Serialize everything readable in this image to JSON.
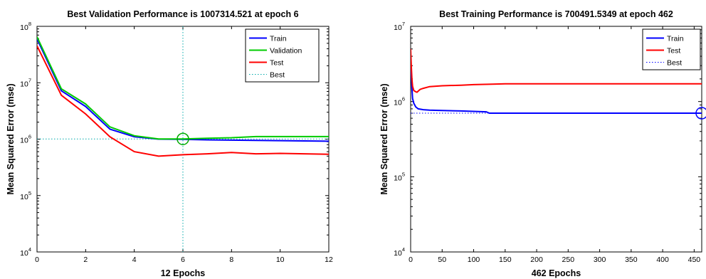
{
  "chart_data": [
    {
      "type": "line",
      "title": "Best Validation Performance is 1007314.521 at epoch 6",
      "xlabel": "12 Epochs",
      "ylabel": "Mean Squared Error  (mse)",
      "xscale": "linear",
      "yscale": "log",
      "xlim": [
        0,
        12
      ],
      "ylim": [
        10000,
        100000000
      ],
      "xticks": [
        0,
        2,
        4,
        6,
        8,
        10,
        12
      ],
      "yticks": [
        10000,
        100000,
        1000000,
        10000000,
        100000000
      ],
      "ytick_base": "10",
      "ytick_exponents": [
        "4",
        "5",
        "6",
        "7",
        "8"
      ],
      "grid": false,
      "legend_position": "top-right",
      "legend": [
        "Train",
        "Validation",
        "Test",
        "Best"
      ],
      "series": [
        {
          "name": "Train",
          "color": "#0000ff",
          "x": [
            0,
            1,
            2,
            3,
            4,
            5,
            6,
            7,
            8,
            9,
            10,
            11,
            12
          ],
          "y": [
            60000000,
            7200000,
            3800000,
            1500000,
            1100000,
            1000000,
            990000,
            970000,
            960000,
            950000,
            940000,
            930000,
            920000
          ]
        },
        {
          "name": "Validation",
          "color": "#00cc00",
          "x": [
            0,
            1,
            2,
            3,
            4,
            5,
            6,
            7,
            8,
            9,
            10,
            11,
            12
          ],
          "y": [
            65000000,
            7800000,
            4200000,
            1650000,
            1150000,
            1010000,
            1007314.521,
            1040000,
            1060000,
            1110000,
            1110000,
            1110000,
            1110000
          ]
        },
        {
          "name": "Test",
          "color": "#ff0000",
          "x": [
            0,
            1,
            2,
            3,
            4,
            5,
            6,
            7,
            8,
            9,
            10,
            11,
            12
          ],
          "y": [
            45000000,
            6000000,
            2800000,
            1100000,
            600000,
            500000,
            530000,
            550000,
            580000,
            550000,
            560000,
            550000,
            540000
          ]
        }
      ],
      "best": {
        "name": "Best",
        "x": 6,
        "y": 1007314.521,
        "color": "#00aa00",
        "ref_color": "#00aaaa"
      }
    },
    {
      "type": "line",
      "title": "Best Training Performance is 700491.5349 at epoch 462",
      "xlabel": "462 Epochs",
      "ylabel": "Mean Squared Error  (mse)",
      "xscale": "linear",
      "yscale": "log",
      "xlim": [
        0,
        462
      ],
      "ylim": [
        10000,
        10000000
      ],
      "xticks": [
        0,
        50,
        100,
        150,
        200,
        250,
        300,
        350,
        400,
        450
      ],
      "yticks": [
        10000,
        100000,
        1000000,
        10000000
      ],
      "ytick_base": "10",
      "ytick_exponents": [
        "4",
        "5",
        "6",
        "7"
      ],
      "grid": false,
      "legend_position": "top-right",
      "legend": [
        "Train",
        "Test",
        "Best"
      ],
      "series": [
        {
          "name": "Train",
          "color": "#0000ff",
          "x": [
            0,
            1,
            2,
            3,
            5,
            8,
            12,
            20,
            30,
            50,
            80,
            100,
            120,
            125,
            200,
            300,
            400,
            462
          ],
          "y": [
            4000000,
            2500000,
            1500000,
            1100000,
            950000,
            850000,
            800000,
            780000,
            770000,
            760000,
            750000,
            740000,
            730000,
            700491.5349,
            700491.5349,
            700491.5349,
            700491.5349,
            700491.5349
          ]
        },
        {
          "name": "Test",
          "color": "#ff0000",
          "x": [
            0,
            1,
            2,
            3,
            5,
            8,
            10,
            15,
            20,
            30,
            50,
            80,
            100,
            130,
            150,
            200,
            300,
            400,
            462
          ],
          "y": [
            5000000,
            3000000,
            2000000,
            1600000,
            1400000,
            1350000,
            1330000,
            1450000,
            1500000,
            1580000,
            1620000,
            1650000,
            1680000,
            1700000,
            1720000,
            1720000,
            1720000,
            1720000,
            1720000
          ]
        }
      ],
      "best": {
        "name": "Best",
        "x": 462,
        "y": 700491.5349,
        "color": "#0000ff",
        "ref_color": "#0000ff"
      }
    }
  ]
}
